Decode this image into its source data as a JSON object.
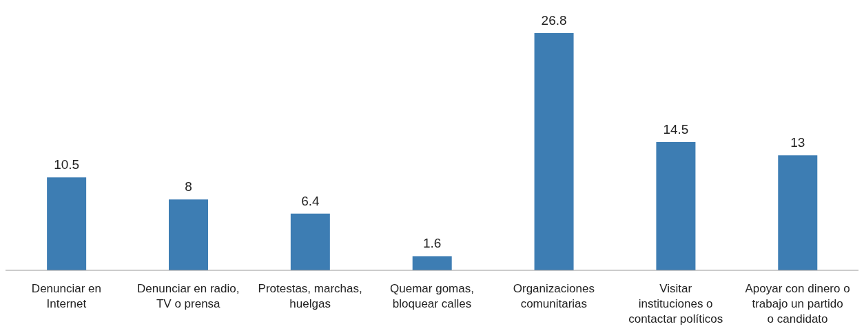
{
  "chart_data": {
    "type": "bar",
    "categories": [
      "Denunciar en Internet",
      "Denunciar en radio, TV o prensa",
      "Protestas, marchas, huelgas",
      "Quemar gomas, bloquear calles",
      "Organizaciones comunitarias",
      "Visitar instituciones o contactar políticos",
      "Apoyar con dinero o trabajo un partido o candidato"
    ],
    "values": [
      10.5,
      8,
      6.4,
      1.6,
      26.8,
      14.5,
      13
    ],
    "color": "#3d7db3",
    "data_labels": true
  }
}
